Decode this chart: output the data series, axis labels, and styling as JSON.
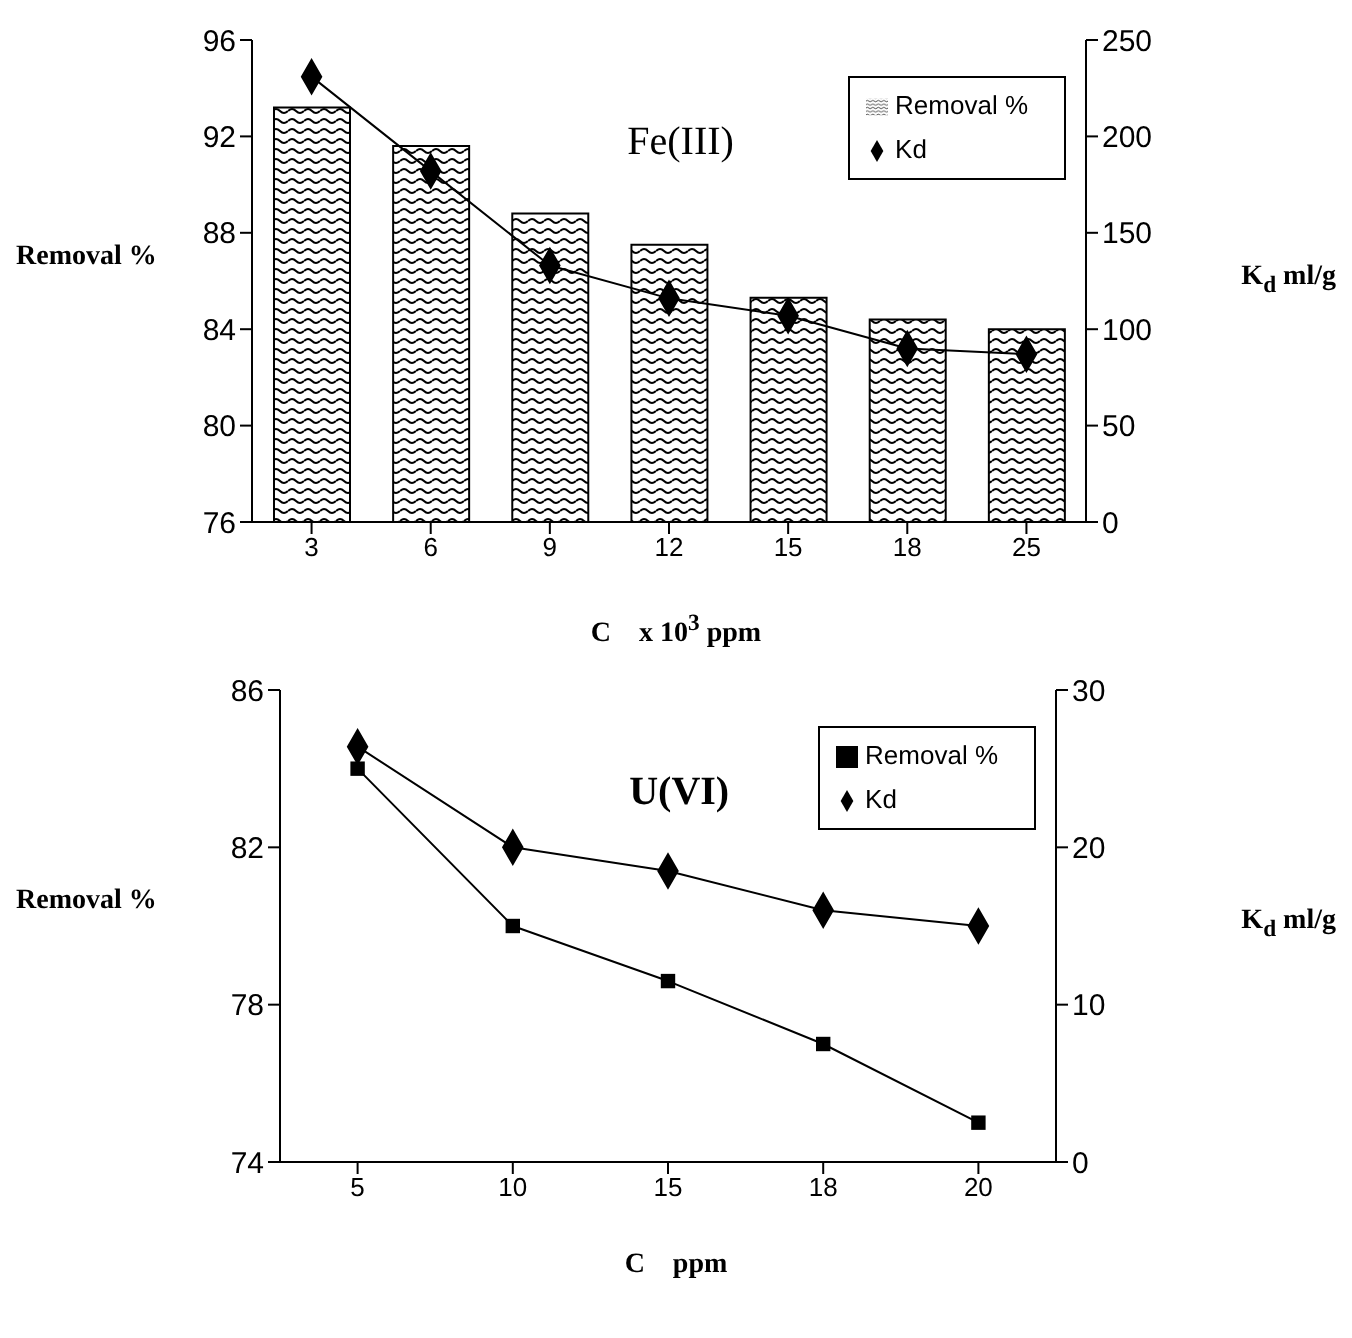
{
  "chart_data": [
    {
      "type": "bar",
      "title": "Fe(III)",
      "xlabel": "C    x 10$^{3}$ ppm",
      "ylabel": "Removal %",
      "y2label": "K$_{d}$ ml/g",
      "categories": [
        "3",
        "6",
        "9",
        "12",
        "15",
        "18",
        "25"
      ],
      "series": [
        {
          "name": "Removal %",
          "color": "#000000",
          "values": [
            93.2,
            91.6,
            88.8,
            87.5,
            85.3,
            84.4,
            84.0
          ]
        },
        {
          "name": "Kd",
          "type": "line",
          "axis": "y2",
          "color": "#000000",
          "marker": "diamond",
          "values": [
            231,
            182,
            133,
            116,
            107,
            90,
            87
          ]
        }
      ],
      "ylim": [
        76,
        96
      ],
      "yticks": [
        76,
        80,
        84,
        88,
        92,
        96
      ],
      "y2lim": [
        0,
        250
      ],
      "y2ticks": [
        0,
        50,
        100,
        150,
        200,
        250
      ],
      "legend": "top right",
      "grid": false
    },
    {
      "type": "line",
      "title": "U(VI)",
      "xlabel": "C    ppm",
      "ylabel": "Removal %",
      "y2label": "K$_{d}$ ml/g",
      "categories": [
        "5",
        "10",
        "15",
        "18",
        "20"
      ],
      "series": [
        {
          "name": "Removal %",
          "color": "#000000",
          "marker": "square",
          "values": [
            84.0,
            80.0,
            78.6,
            77.0,
            75.0
          ]
        },
        {
          "name": "Kd",
          "axis": "y2",
          "color": "#000000",
          "marker": "diamond",
          "values": [
            26.4,
            20,
            18.5,
            16,
            15
          ]
        }
      ],
      "ylim": [
        74,
        86
      ],
      "yticks": [
        74,
        78,
        82,
        86
      ],
      "y2lim": [
        0,
        30
      ],
      "y2ticks": [
        0,
        10,
        20,
        30
      ],
      "legend": "top right",
      "grid": false
    }
  ]
}
